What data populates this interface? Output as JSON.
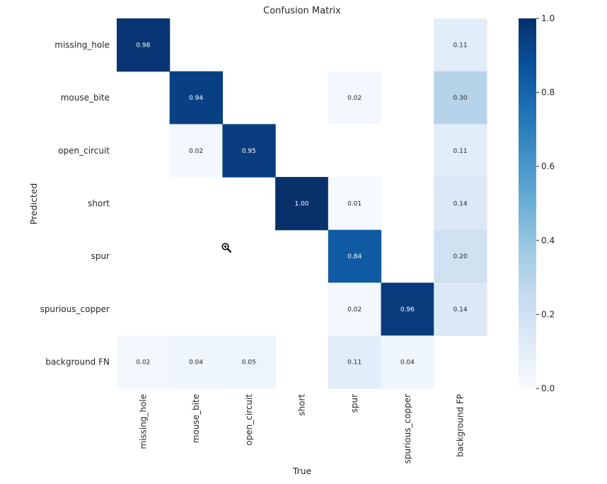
{
  "chart_data": {
    "type": "heatmap",
    "title": "Confusion Matrix",
    "xlabel": "True",
    "ylabel": "Predicted",
    "x_categories": [
      "missing_hole",
      "mouse_bite",
      "open_circuit",
      "short",
      "spur",
      "spurious_copper",
      "background FP"
    ],
    "y_categories": [
      "missing_hole",
      "mouse_bite",
      "open_circuit",
      "short",
      "spur",
      "spurious_copper",
      "background FN"
    ],
    "values": [
      [
        0.98,
        null,
        null,
        null,
        null,
        null,
        0.11
      ],
      [
        null,
        0.94,
        null,
        null,
        0.02,
        null,
        0.3
      ],
      [
        null,
        0.02,
        0.95,
        null,
        null,
        null,
        0.11
      ],
      [
        null,
        null,
        null,
        1.0,
        0.01,
        null,
        0.14
      ],
      [
        null,
        null,
        null,
        null,
        0.84,
        null,
        0.2
      ],
      [
        null,
        null,
        null,
        null,
        0.02,
        0.96,
        0.14
      ],
      [
        0.02,
        0.04,
        0.05,
        null,
        0.11,
        0.04,
        null
      ]
    ],
    "colorbar": {
      "colormap": "Blues",
      "range": [
        0.0,
        1.0
      ],
      "ticks": [
        "0.0",
        "0.2",
        "0.4",
        "0.6",
        "0.8",
        "1.0"
      ]
    }
  }
}
